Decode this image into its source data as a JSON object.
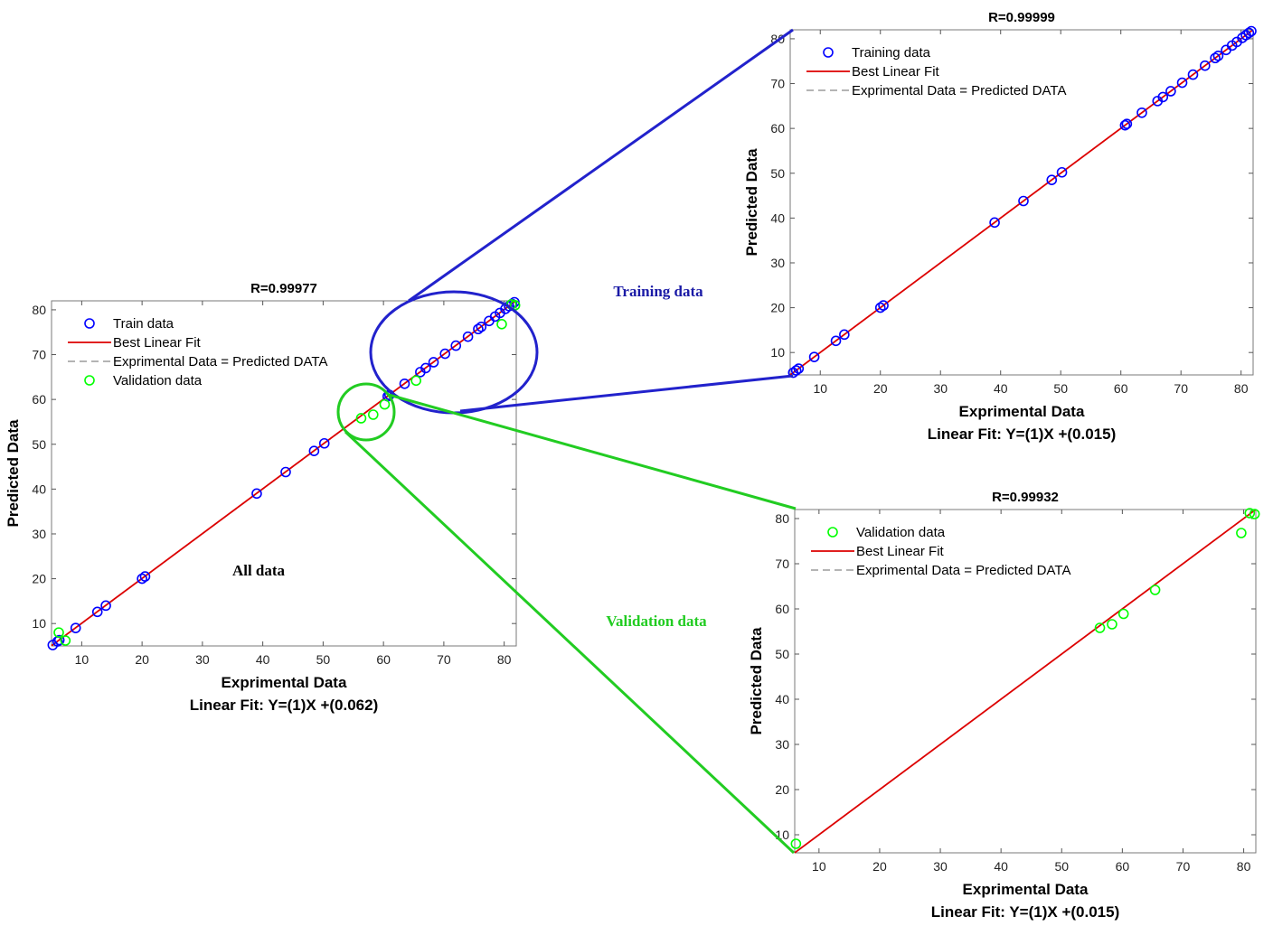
{
  "colors": {
    "train": "#0000ff",
    "validation": "#00ff00",
    "fit": "#dd0000",
    "ideal": "#888888",
    "zoom_blue": "#2222cc",
    "zoom_green": "#22cc22",
    "label_blue": "#1a1aa6",
    "label_green": "#22cc22"
  },
  "annotations": {
    "all": "All data",
    "training": "Training data",
    "validation": "Validation data"
  },
  "chart_data": [
    {
      "id": "all",
      "type": "scatter",
      "title": "R=0.99977",
      "xlabel": "Exprimental Data",
      "ylabel": "Predicted Data",
      "fit_label": "Linear Fit: Y=(1)X +(0.062)",
      "xlim": [
        5,
        82
      ],
      "ylim": [
        5,
        82
      ],
      "xticks": [
        10,
        20,
        30,
        40,
        50,
        60,
        70,
        80
      ],
      "yticks": [
        10,
        20,
        30,
        40,
        50,
        60,
        70,
        80
      ],
      "fit": {
        "slope": 1,
        "intercept": 0.062
      },
      "legend": [
        "Train data",
        "Best Linear Fit",
        "Exprimental Data = Predicted DATA",
        "Validation data"
      ],
      "series": [
        {
          "name": "Train data",
          "marker": "circle",
          "color": "blue",
          "points": [
            [
              5.2,
              5.2
            ],
            [
              6,
              6
            ],
            [
              6.3,
              6.3
            ],
            [
              9,
              9
            ],
            [
              12.6,
              12.6
            ],
            [
              14,
              14
            ],
            [
              20,
              20
            ],
            [
              20.5,
              20.5
            ],
            [
              39,
              39
            ],
            [
              43.8,
              43.8
            ],
            [
              48.5,
              48.5
            ],
            [
              50.2,
              50.2
            ],
            [
              60.7,
              60.7
            ],
            [
              61,
              61
            ],
            [
              63.5,
              63.5
            ],
            [
              66.1,
              66.1
            ],
            [
              67,
              67
            ],
            [
              68.3,
              68.3
            ],
            [
              70.2,
              70.2
            ],
            [
              72,
              72
            ],
            [
              74,
              74
            ],
            [
              75.7,
              75.7
            ],
            [
              76.2,
              76.2
            ],
            [
              77.5,
              77.5
            ],
            [
              78.5,
              78.5
            ],
            [
              79.3,
              79.3
            ],
            [
              80.2,
              80.2
            ],
            [
              80.8,
              80.8
            ],
            [
              81.3,
              81.3
            ],
            [
              81.7,
              81.7
            ]
          ]
        },
        {
          "name": "Validation data",
          "marker": "circle",
          "color": "green",
          "points": [
            [
              6.2,
              8
            ],
            [
              7.3,
              6.2
            ],
            [
              56.3,
              55.8
            ],
            [
              58.3,
              56.6
            ],
            [
              60.2,
              58.9
            ],
            [
              65.4,
              64.2
            ],
            [
              79.6,
              76.8
            ],
            [
              81.2,
              81.2
            ],
            [
              81.8,
              81
            ]
          ]
        }
      ]
    },
    {
      "id": "training",
      "type": "scatter",
      "title": "R=0.99999",
      "xlabel": "Exprimental Data",
      "ylabel": "Predicted Data",
      "fit_label": "Linear Fit: Y=(1)X +(0.015)",
      "xlim": [
        5,
        82
      ],
      "ylim": [
        5,
        82
      ],
      "xticks": [
        10,
        20,
        30,
        40,
        50,
        60,
        70,
        80
      ],
      "yticks": [
        10,
        20,
        30,
        40,
        50,
        60,
        70,
        80
      ],
      "fit": {
        "slope": 1,
        "intercept": 0.015
      },
      "legend": [
        "Training data",
        "Best Linear Fit",
        "Exprimental Data = Predicted DATA"
      ],
      "series": [
        {
          "name": "Training data",
          "marker": "circle",
          "color": "blue",
          "points": [
            [
              5.5,
              5.5
            ],
            [
              6,
              6
            ],
            [
              6.4,
              6.4
            ],
            [
              9,
              9
            ],
            [
              12.6,
              12.6
            ],
            [
              14,
              14
            ],
            [
              20,
              20
            ],
            [
              20.5,
              20.5
            ],
            [
              39,
              39
            ],
            [
              43.8,
              43.8
            ],
            [
              48.5,
              48.5
            ],
            [
              50.2,
              50.2
            ],
            [
              60.7,
              60.7
            ],
            [
              61,
              61
            ],
            [
              63.5,
              63.5
            ],
            [
              66.1,
              66.1
            ],
            [
              67,
              67
            ],
            [
              68.3,
              68.3
            ],
            [
              70.2,
              70.2
            ],
            [
              72,
              72
            ],
            [
              74,
              74
            ],
            [
              75.7,
              75.7
            ],
            [
              76.2,
              76.2
            ],
            [
              77.5,
              77.5
            ],
            [
              78.5,
              78.5
            ],
            [
              79.3,
              79.3
            ],
            [
              80.2,
              80.2
            ],
            [
              80.8,
              80.8
            ],
            [
              81.3,
              81.3
            ],
            [
              81.7,
              81.7
            ]
          ]
        }
      ]
    },
    {
      "id": "validation",
      "type": "scatter",
      "title": "R=0.99932",
      "xlabel": "Exprimental Data",
      "ylabel": "Predicted Data",
      "fit_label": "Linear Fit: Y=(1)X +(0.015)",
      "xlim": [
        6,
        82
      ],
      "ylim": [
        6,
        82
      ],
      "xticks": [
        10,
        20,
        30,
        40,
        50,
        60,
        70,
        80
      ],
      "yticks": [
        10,
        20,
        30,
        40,
        50,
        60,
        70,
        80
      ],
      "fit": {
        "slope": 1,
        "intercept": 0.015
      },
      "legend": [
        "Validation data",
        "Best Linear Fit",
        "Exprimental Data = Predicted DATA"
      ],
      "series": [
        {
          "name": "Validation data",
          "marker": "circle",
          "color": "green",
          "points": [
            [
              6.2,
              8
            ],
            [
              56.3,
              55.8
            ],
            [
              58.3,
              56.6
            ],
            [
              60.2,
              58.9
            ],
            [
              65.4,
              64.2
            ],
            [
              79.6,
              76.8
            ],
            [
              81,
              81.2
            ],
            [
              81.8,
              81
            ]
          ]
        }
      ]
    }
  ]
}
